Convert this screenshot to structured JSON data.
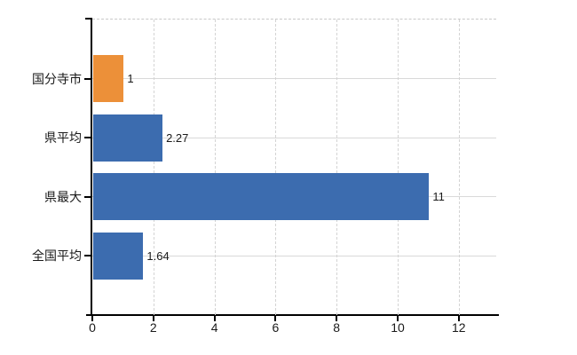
{
  "chart_data": {
    "type": "bar",
    "orientation": "horizontal",
    "title": "",
    "xlabel": "",
    "ylabel": "",
    "categories": [
      "国分寺市",
      "県平均",
      "県最大",
      "全国平均"
    ],
    "values": [
      1,
      2.27,
      11,
      1.64
    ],
    "value_labels": [
      "1",
      "2.27",
      "11",
      "1.64"
    ],
    "bar_colors": [
      "#EC9039",
      "#3C6CAF",
      "#3C6CAF",
      "#3C6CAF"
    ],
    "x_ticks": [
      0,
      2,
      4,
      6,
      8,
      10,
      12
    ],
    "xlim": [
      0,
      13.2
    ],
    "grid": true,
    "gridline_style": {
      "vertical": "dashed",
      "horizontal": "solid"
    },
    "legend": "none"
  },
  "colors": {
    "highlight_bar": "#EC9039",
    "default_bar": "#3C6CAF"
  }
}
